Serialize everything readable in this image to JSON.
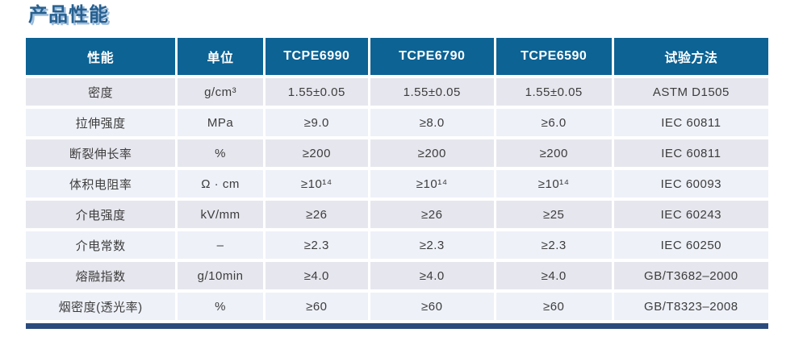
{
  "page": {
    "title": "产品性能"
  },
  "table": {
    "columns": [
      "性能",
      "单位",
      "TCPE6990",
      "TCPE6790",
      "TCPE6590",
      "试验方法"
    ],
    "rows": [
      {
        "cells": [
          "密度",
          "g/cm³",
          "1.55±0.05",
          "1.55±0.05",
          "1.55±0.05",
          "ASTM D1505"
        ]
      },
      {
        "cells": [
          "拉伸强度",
          "MPa",
          "≥9.0",
          "≥8.0",
          "≥6.0",
          "IEC 60811"
        ]
      },
      {
        "cells": [
          "断裂伸长率",
          "%",
          "≥200",
          "≥200",
          "≥200",
          "IEC 60811"
        ]
      },
      {
        "cells": [
          "体积电阻率",
          "Ω · cm",
          "≥10¹⁴",
          "≥10¹⁴",
          "≥10¹⁴",
          "IEC 60093"
        ]
      },
      {
        "cells": [
          "介电强度",
          "kV/mm",
          "≥26",
          "≥26",
          "≥25",
          "IEC 60243"
        ]
      },
      {
        "cells": [
          "介电常数",
          "–",
          "≥2.3",
          "≥2.3",
          "≥2.3",
          "IEC 60250"
        ]
      },
      {
        "cells": [
          "熔融指数",
          "g/10min",
          "≥4.0",
          "≥4.0",
          "≥4.0",
          "GB/T3682–2000"
        ]
      },
      {
        "cells": [
          "烟密度(透光率)",
          "%",
          "≥60",
          "≥60",
          "≥60",
          "GB/T8323–2008"
        ]
      }
    ]
  },
  "colors": {
    "header_background": "#0c6394",
    "header_text": "#ffffff",
    "row_odd_background": "#e6e6ee",
    "row_even_background": "#eef1f8",
    "body_text": "#3d3d3d",
    "bottom_bar": "#2a4b7c",
    "title_text": "#27608f",
    "title_shadow": "#9bbcdd",
    "cell_gutter": "#ffffff"
  }
}
